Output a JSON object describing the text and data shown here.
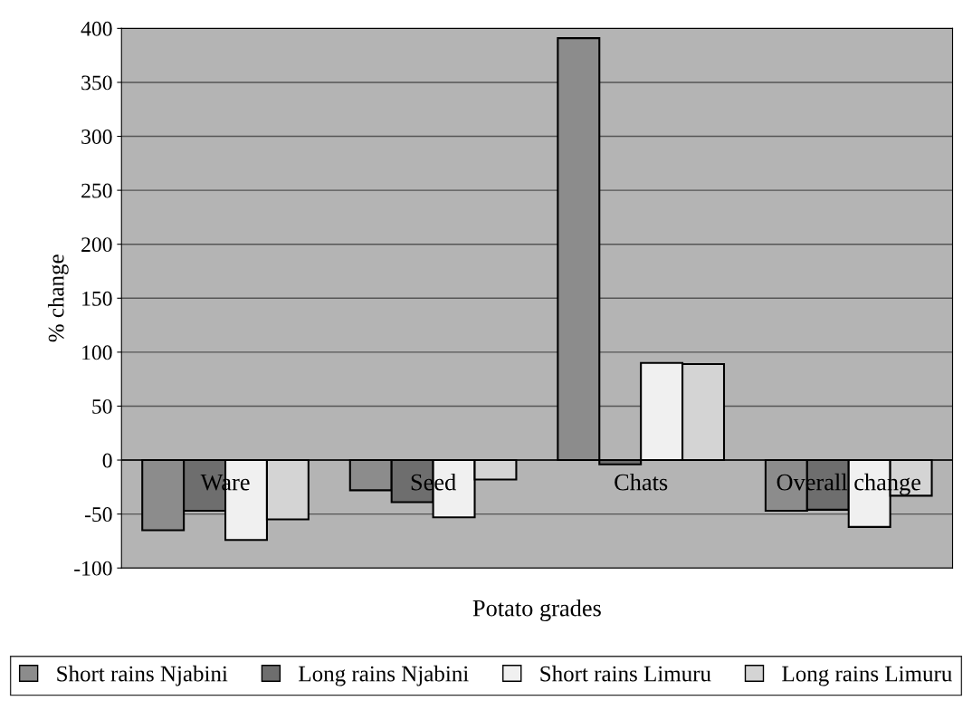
{
  "chart_data": {
    "type": "bar",
    "xlabel": "Potato grades",
    "ylabel": "% change",
    "categories": [
      "Ware",
      "Seed",
      "Chats",
      "Overall change"
    ],
    "series": [
      {
        "name": "Short rains Njabini",
        "color": "#8c8c8c",
        "values": [
          -65,
          -28,
          391,
          -47
        ]
      },
      {
        "name": "Long rains Njabini",
        "color": "#6e6e6e",
        "values": [
          -47,
          -39,
          -4,
          -46
        ]
      },
      {
        "name": "Short rains Limuru",
        "color": "#f0f0f0",
        "values": [
          -74,
          -53,
          90,
          -62
        ]
      },
      {
        "name": "Long rains Limuru",
        "color": "#d4d4d4",
        "values": [
          -55,
          -18,
          89,
          -33
        ]
      }
    ],
    "ylim": [
      -100,
      400
    ],
    "yticks": [
      -100,
      -50,
      0,
      50,
      100,
      150,
      200,
      250,
      300,
      350,
      400
    ],
    "grid": "y",
    "legend": "bottom"
  }
}
